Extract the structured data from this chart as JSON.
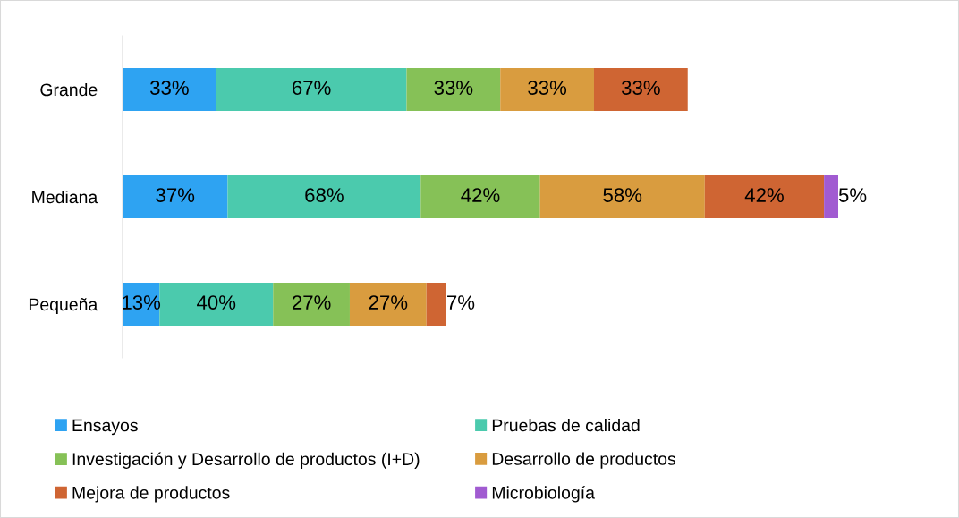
{
  "chart_data": {
    "type": "bar",
    "orientation": "horizontal",
    "stacked": true,
    "data_labels": true,
    "legend": "bottom",
    "grid": false,
    "tick_labels": "y",
    "categories": [
      "Grande",
      "Mediana",
      "Pequeña"
    ],
    "series": [
      {
        "name": "Ensayos",
        "color": "#2ea3f2",
        "values": [
          33,
          37,
          13
        ],
        "value_labels": [
          "33%",
          "37%",
          "13%"
        ]
      },
      {
        "name": "Pruebas de calidad",
        "color": "#4bcaad",
        "values": [
          67,
          68,
          40
        ],
        "value_labels": [
          "67%",
          "68%",
          "40%"
        ]
      },
      {
        "name": "Investigación y Desarrollo de productos (I+D)",
        "color": "#86c157",
        "values": [
          33,
          42,
          27
        ],
        "value_labels": [
          "33%",
          "42%",
          "27%"
        ]
      },
      {
        "name": "Desarrollo de productos",
        "color": "#d99c3f",
        "values": [
          33,
          58,
          27
        ],
        "value_labels": [
          "33%",
          "58%",
          "27%"
        ]
      },
      {
        "name": "Mejora de productos",
        "color": "#cf6533",
        "values": [
          33,
          42,
          7
        ],
        "value_labels": [
          "33%",
          "42%",
          "7%"
        ]
      },
      {
        "name": "Microbiología",
        "color": "#a15bd1",
        "values": [
          null,
          5,
          null
        ],
        "value_labels": [
          null,
          "5%",
          null
        ]
      }
    ]
  }
}
